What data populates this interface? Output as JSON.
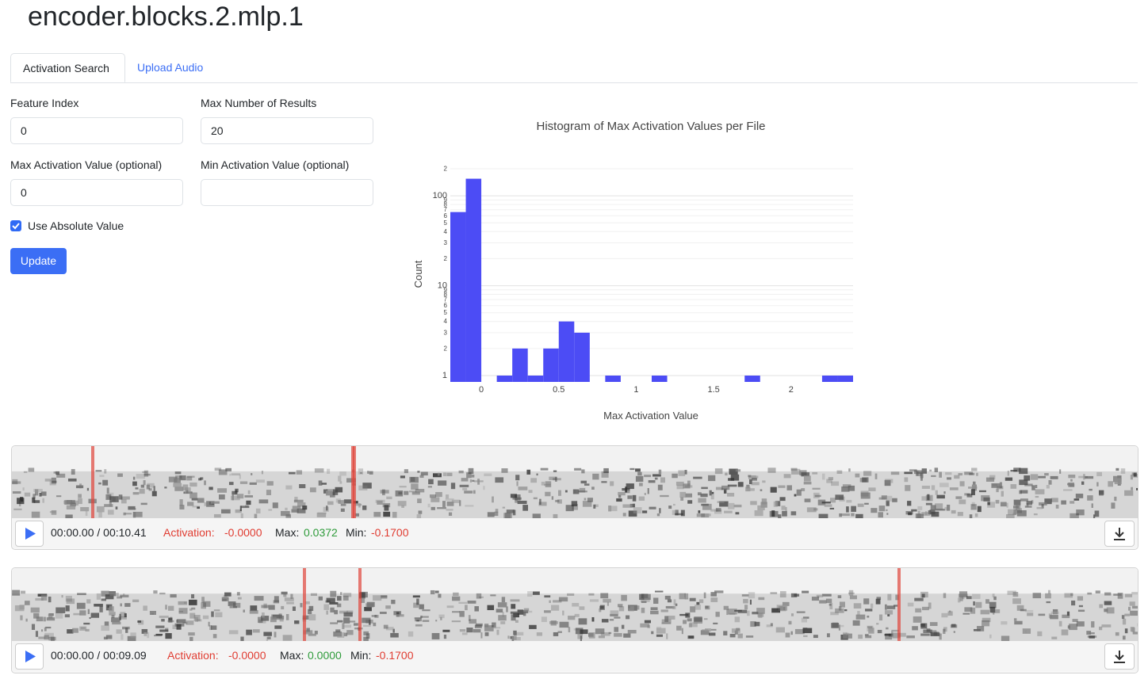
{
  "header": {
    "title": "encoder.blocks.2.mlp.1"
  },
  "tabs": [
    "Activation Search",
    "Upload Audio"
  ],
  "form": {
    "fields": [
      {
        "label": "Feature Index",
        "value": "0"
      },
      {
        "label": "Max Number of Results",
        "value": "20"
      },
      {
        "label": "Max Activation Value (optional)",
        "value": "0"
      },
      {
        "label": "Min Activation Value (optional)"
      }
    ],
    "checkbox": "Use Absolute Value",
    "button": "Update"
  },
  "chart_data": {
    "type": "histogram",
    "title": "Histogram of Max Activation Values per File",
    "x_label": "Max Activation Value",
    "y_label": "Count",
    "color": "#4c4cf5",
    "log_y": true,
    "grid": true,
    "bins": [
      -0.2,
      -0.1,
      0,
      0.1,
      0.2,
      0.3,
      0.4,
      0.5,
      0.6,
      0.7,
      0.8,
      0.9,
      1.0,
      1.1,
      1.2,
      1.3,
      1.4,
      1.5,
      1.6,
      1.7,
      1.8,
      1.9,
      2.0,
      2.1,
      2.2,
      2.3,
      2.4
    ],
    "values": [
      66,
      155,
      0,
      1,
      2,
      1,
      2,
      4,
      3,
      0,
      1,
      0,
      0,
      1,
      0,
      0,
      0,
      0,
      0,
      1,
      0,
      0,
      0,
      0,
      1,
      1
    ],
    "xlim": [
      -0.2,
      2.4
    ],
    "xticks": [
      0,
      0.5,
      1,
      1.5,
      2
    ],
    "ylim": [
      0.85,
      200
    ],
    "yticks": [
      1,
      2,
      3,
      4,
      5,
      6,
      7,
      8,
      9,
      10,
      {
        "value": 20,
        "label": "2"
      },
      {
        "value": 30,
        "label": "3"
      },
      {
        "value": 40,
        "label": "4"
      },
      {
        "value": 50,
        "label": "5"
      },
      {
        "value": 60,
        "label": "6"
      },
      {
        "value": 70,
        "label": "7"
      },
      {
        "value": 80,
        "label": "8"
      },
      {
        "value": 90,
        "label": "9"
      },
      100,
      {
        "value": 200,
        "label": "2"
      }
    ]
  },
  "players": [
    {
      "time": "00:00.00 / 00:10.41",
      "activation_label": "Activation:",
      "activation": "-0.0000",
      "max_label": "Max:",
      "max": "0.0372",
      "min_label": "Min:",
      "min": "-0.1700"
    },
    {
      "time": "00:00.00 / 00:09.09",
      "activation_label": "Activation:",
      "activation": "-0.0000",
      "max_label": "Max:",
      "max": "0.0000",
      "min_label": "Min:",
      "min": "-0.1700"
    }
  ]
}
